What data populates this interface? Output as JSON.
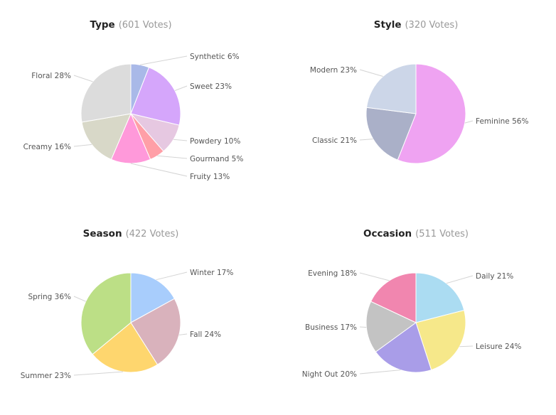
{
  "chart_data": [
    {
      "type": "pie",
      "title": "Type",
      "subtitle": "(601 Votes)",
      "slices": [
        {
          "label": "Synthetic",
          "percent_label": "6%",
          "value": 6,
          "color": "#a9b9e8"
        },
        {
          "label": "Sweet",
          "percent_label": "23%",
          "value": 23,
          "color": "#d5a6fb"
        },
        {
          "label": "Powdery",
          "percent_label": "10%",
          "value": 10,
          "color": "#e6c8e1"
        },
        {
          "label": "Gourmand",
          "percent_label": "5%",
          "value": 5,
          "color": "#ff9fa7"
        },
        {
          "label": "Fruity",
          "percent_label": "13%",
          "value": 13,
          "color": "#ff99da"
        },
        {
          "label": "Creamy",
          "percent_label": "16%",
          "value": 16,
          "color": "#d8d8c8"
        },
        {
          "label": "Floral",
          "percent_label": "28%",
          "value": 28,
          "color": "#dcdcdc"
        }
      ]
    },
    {
      "type": "pie",
      "title": "Style",
      "subtitle": "(320 Votes)",
      "slices": [
        {
          "label": "Feminine",
          "percent_label": "56%",
          "value": 56,
          "color": "#efa3f2"
        },
        {
          "label": "Classic",
          "percent_label": "21%",
          "value": 21,
          "color": "#aab0c8"
        },
        {
          "label": "Modern",
          "percent_label": "23%",
          "value": 23,
          "color": "#ccd6e8"
        }
      ]
    },
    {
      "type": "pie",
      "title": "Season",
      "subtitle": "(422 Votes)",
      "slices": [
        {
          "label": "Winter",
          "percent_label": "17%",
          "value": 17,
          "color": "#a8cdfc"
        },
        {
          "label": "Fall",
          "percent_label": "24%",
          "value": 24,
          "color": "#d9b2bc"
        },
        {
          "label": "Summer",
          "percent_label": "23%",
          "value": 23,
          "color": "#fed66e"
        },
        {
          "label": "Spring",
          "percent_label": "36%",
          "value": 36,
          "color": "#bcdf86"
        }
      ]
    },
    {
      "type": "pie",
      "title": "Occasion",
      "subtitle": "(511 Votes)",
      "slices": [
        {
          "label": "Daily",
          "percent_label": "21%",
          "value": 21,
          "color": "#abdcf2"
        },
        {
          "label": "Leisure",
          "percent_label": "24%",
          "value": 24,
          "color": "#f6e88a"
        },
        {
          "label": "Night Out",
          "percent_label": "20%",
          "value": 20,
          "color": "#a99de8"
        },
        {
          "label": "Business",
          "percent_label": "17%",
          "value": 17,
          "color": "#c3c3c3"
        },
        {
          "label": "Evening",
          "percent_label": "18%",
          "value": 18,
          "color": "#f186af"
        }
      ]
    }
  ]
}
